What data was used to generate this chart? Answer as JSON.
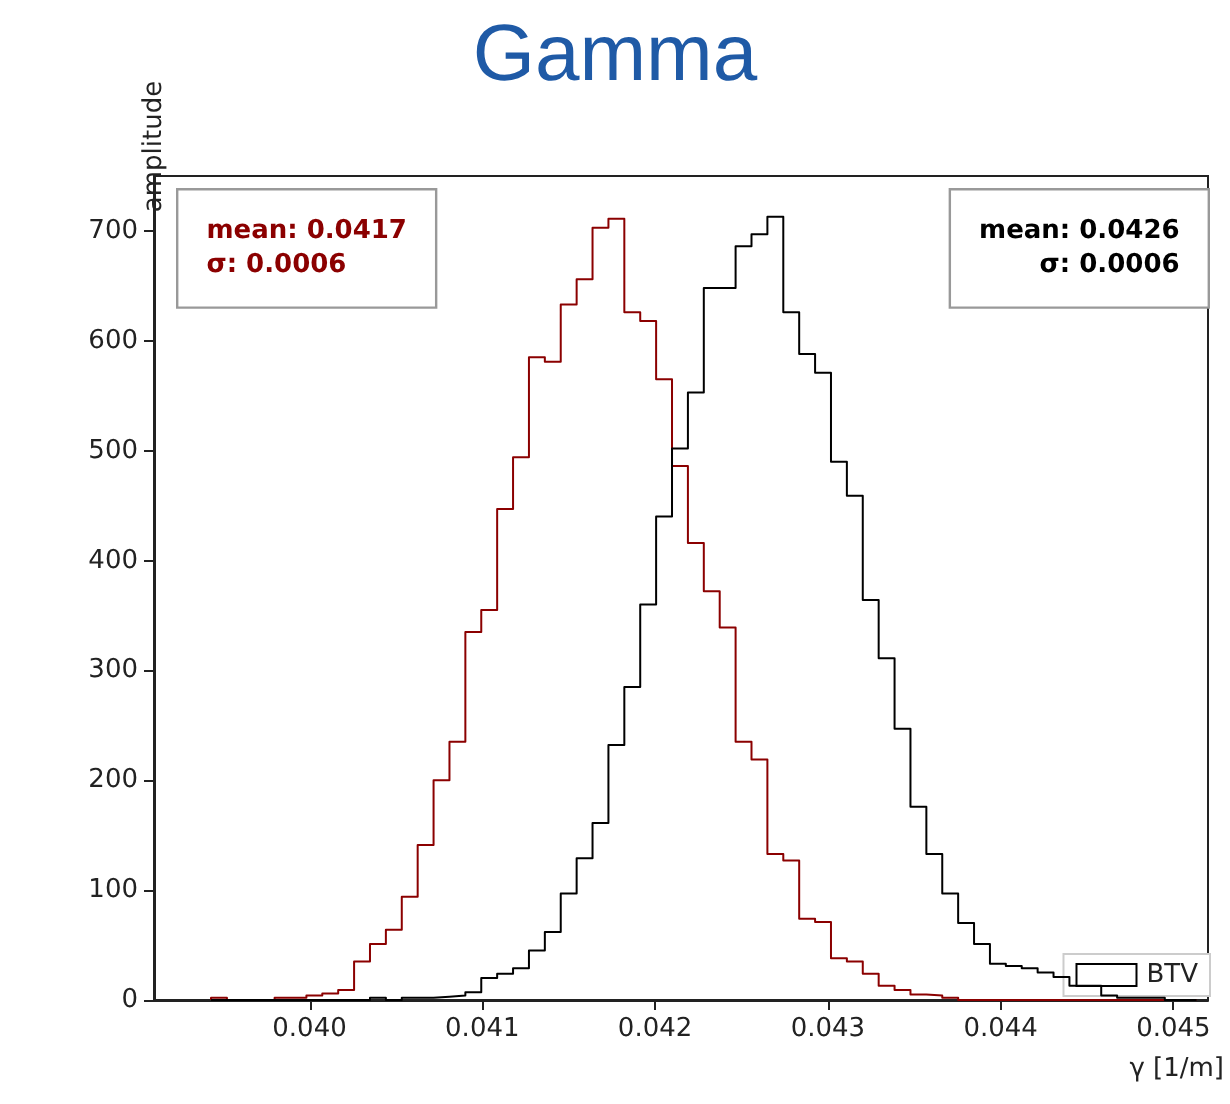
{
  "chart_data": {
    "type": "histogram",
    "title": "Gamma",
    "xlabel": "γ [1/m]",
    "ylabel": "amplitude",
    "bins": [
      0.03943,
      0.039522,
      0.039614,
      0.039706,
      0.039798,
      0.03989,
      0.039982,
      0.040074,
      0.040166,
      0.040258,
      0.04035,
      0.040442,
      0.040534,
      0.040626,
      0.040718,
      0.04081,
      0.040902,
      0.040994,
      0.041086,
      0.041178,
      0.04127,
      0.041362,
      0.041454,
      0.041546,
      0.041638,
      0.04173,
      0.041822,
      0.041914,
      0.042006,
      0.042098,
      0.04219,
      0.042282,
      0.042374,
      0.042466,
      0.042558,
      0.04265,
      0.042742,
      0.042834,
      0.042926,
      0.043018,
      0.04311,
      0.043202,
      0.043294,
      0.043386,
      0.043478,
      0.04357,
      0.043662,
      0.043754,
      0.043846,
      0.043938,
      0.04403,
      0.044122,
      0.044214,
      0.044306,
      0.044398,
      0.04449,
      0.044582,
      0.044674,
      0.044766,
      0.044858,
      0.04495,
      0.045042,
      0.045134
    ],
    "series": [
      {
        "color": "#8b0000",
        "values": [
          2,
          0,
          0,
          0,
          2,
          2,
          4,
          6,
          9,
          35,
          51,
          64,
          94,
          141,
          200,
          235,
          335,
          355,
          447,
          494,
          585,
          581,
          633,
          656,
          703,
          711,
          626,
          618,
          565,
          486,
          416,
          372,
          339,
          235,
          219,
          133,
          127,
          74,
          71,
          38,
          35,
          24,
          13,
          9,
          5,
          4,
          2,
          0,
          0,
          0,
          0,
          0,
          0,
          0,
          0,
          0,
          0,
          0,
          0,
          0,
          0,
          0
        ]
      },
      {
        "name": "BTV",
        "color": "#000000",
        "values": [
          0,
          0,
          0,
          0,
          0,
          0,
          0,
          0,
          0,
          0,
          2,
          0,
          2,
          2,
          3,
          4,
          7,
          20,
          24,
          29,
          45,
          62,
          97,
          129,
          161,
          232,
          285,
          360,
          440,
          502,
          553,
          648,
          648,
          686,
          697,
          713,
          626,
          588,
          571,
          490,
          459,
          364,
          311,
          247,
          176,
          133,
          97,
          70,
          51,
          33,
          31,
          29,
          25,
          21,
          13,
          13,
          4,
          2,
          2,
          2,
          0,
          0
        ]
      }
    ],
    "annotations": [
      "mean: 0.0417\nσ: 0.0006",
      "mean: 0.0426\nσ: 0.0006"
    ],
    "xlim": [
      0.0391,
      0.0452
    ],
    "xticks": [
      {
        "value": 0.04,
        "label": "0.040"
      },
      0.041,
      0.042,
      0.043,
      0.044,
      0.045
    ],
    "ylim": [
      0,
      750
    ],
    "yticks": [
      0,
      100,
      200,
      300,
      400,
      500,
      600,
      700
    ],
    "grid": false,
    "legend": "bottom right"
  }
}
